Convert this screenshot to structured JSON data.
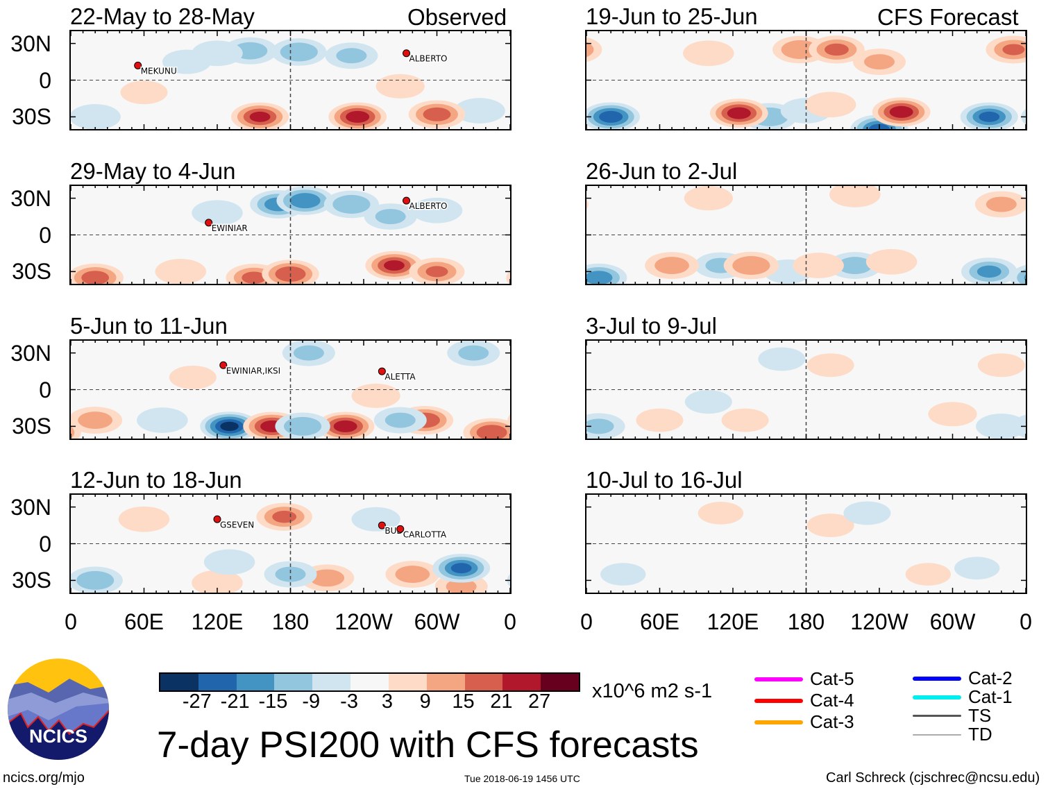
{
  "header": {
    "left_label": "Observed",
    "right_label": "CFS Forecast"
  },
  "lat_labels": [
    "30N",
    "0",
    "30S"
  ],
  "lon_labels": [
    "0",
    "60E",
    "120E",
    "180",
    "120W",
    "60W",
    "0"
  ],
  "colors": [
    "#0a3263",
    "#2166ac",
    "#4393c3",
    "#92c5de",
    "#d1e5f0",
    "#f7f7f7",
    "#fddbc7",
    "#f4a582",
    "#d6604d",
    "#b2182b",
    "#67001f"
  ],
  "chart_data": {
    "type": "heatmap",
    "title": "7-day PSI200 with CFS forecasts",
    "units": "x10^6 m2 s-1",
    "levels": [
      "-27",
      "-21",
      "-15",
      "-9",
      "-3",
      "3",
      "9",
      "15",
      "21",
      "27"
    ],
    "panels": [
      {
        "title": "22-May to 28-May",
        "kind": "observed",
        "anomalies": [
          [
            147,
            24,
            -12
          ],
          [
            187,
            23,
            -14
          ],
          [
            120,
            22,
            -8
          ],
          [
            230,
            20,
            -10
          ],
          [
            95,
            15,
            -6
          ],
          [
            20,
            -30,
            -8
          ],
          [
            335,
            -25,
            -8
          ],
          [
            155,
            -30,
            22
          ],
          [
            235,
            -30,
            24
          ],
          [
            300,
            -28,
            18
          ],
          [
            60,
            -10,
            5
          ],
          [
            270,
            -5,
            6
          ]
        ],
        "storms": [
          {
            "name": "MEKUNU",
            "lon": 55,
            "lat": 12
          },
          {
            "name": "ALBERTO",
            "lon": 275,
            "lat": 22
          }
        ]
      },
      {
        "title": "29-May to 4-Jun",
        "kind": "observed",
        "anomalies": [
          [
            170,
            25,
            -18
          ],
          [
            192,
            28,
            -20
          ],
          [
            230,
            25,
            -14
          ],
          [
            262,
            15,
            -10
          ],
          [
            120,
            18,
            -8
          ],
          [
            300,
            20,
            -8
          ],
          [
            20,
            -35,
            18
          ],
          [
            150,
            -35,
            16
          ],
          [
            180,
            -32,
            20
          ],
          [
            265,
            -25,
            22
          ],
          [
            300,
            -30,
            15
          ],
          [
            90,
            -30,
            8
          ]
        ],
        "storms": [
          {
            "name": "EWINIAR",
            "lon": 113,
            "lat": 10
          },
          {
            "name": "ALBERTO",
            "lon": 275,
            "lat": 28
          }
        ]
      },
      {
        "title": "5-Jun to 11-Jun",
        "kind": "observed",
        "anomalies": [
          [
            130,
            -30,
            -28
          ],
          [
            165,
            -30,
            24
          ],
          [
            225,
            -30,
            24
          ],
          [
            290,
            -25,
            20
          ],
          [
            345,
            -35,
            20
          ],
          [
            20,
            -25,
            12
          ],
          [
            190,
            -30,
            -14
          ],
          [
            270,
            -25,
            -10
          ],
          [
            75,
            -25,
            -8
          ],
          [
            195,
            30,
            -10
          ],
          [
            330,
            30,
            -10
          ],
          [
            250,
            -5,
            6
          ],
          [
            100,
            10,
            5
          ]
        ],
        "storms": [
          {
            "name": "EWINIAR,IKSI",
            "lon": 125,
            "lat": 20
          },
          {
            "name": "ALETTA",
            "lon": 255,
            "lat": 15
          }
        ]
      },
      {
        "title": "12-Jun to 18-Jun",
        "kind": "observed",
        "anomalies": [
          [
            175,
            22,
            16
          ],
          [
            120,
            -32,
            8
          ],
          [
            210,
            -28,
            12
          ],
          [
            280,
            -25,
            12
          ],
          [
            320,
            -35,
            10
          ],
          [
            20,
            -30,
            -14
          ],
          [
            320,
            -20,
            -22
          ],
          [
            180,
            -25,
            -10
          ],
          [
            130,
            -15,
            -8
          ],
          [
            250,
            20,
            -6
          ],
          [
            60,
            20,
            8
          ]
        ],
        "storms": [
          {
            "name": "GSEVEN",
            "lon": 120,
            "lat": 20
          },
          {
            "name": "BUD",
            "lon": 255,
            "lat": 15
          },
          {
            "name": "CARLOTTA",
            "lon": 270,
            "lat": 12
          }
        ]
      },
      {
        "title": "19-Jun to 25-Jun",
        "kind": "forecast",
        "anomalies": [
          [
            20,
            -30,
            -24
          ],
          [
            150,
            -30,
            -14
          ],
          [
            180,
            -25,
            -8
          ],
          [
            240,
            -40,
            -22
          ],
          [
            330,
            -30,
            -22
          ],
          [
            125,
            -27,
            24
          ],
          [
            258,
            -26,
            24
          ],
          [
            200,
            -20,
            8
          ],
          [
            175,
            25,
            14
          ],
          [
            205,
            25,
            16
          ],
          [
            350,
            25,
            15
          ],
          [
            240,
            15,
            10
          ],
          [
            100,
            22,
            8
          ]
        ],
        "storms": []
      },
      {
        "title": "26-Jun to 2-Jul",
        "kind": "forecast",
        "anomalies": [
          [
            10,
            -35,
            -18
          ],
          [
            110,
            -25,
            -10
          ],
          [
            330,
            -30,
            -16
          ],
          [
            220,
            -25,
            -12
          ],
          [
            165,
            -30,
            -6
          ],
          [
            70,
            -25,
            12
          ],
          [
            135,
            -25,
            14
          ],
          [
            190,
            -25,
            8
          ],
          [
            250,
            -22,
            8
          ],
          [
            220,
            33,
            8
          ],
          [
            340,
            25,
            10
          ],
          [
            100,
            30,
            6
          ]
        ],
        "storms": []
      },
      {
        "title": "3-Jul to 9-Jul",
        "kind": "forecast",
        "anomalies": [
          [
            10,
            -30,
            -10
          ],
          [
            340,
            -30,
            -8
          ],
          [
            100,
            -10,
            -5
          ],
          [
            160,
            25,
            -5
          ],
          [
            60,
            -25,
            5
          ],
          [
            130,
            -25,
            5
          ],
          [
            300,
            -20,
            6
          ],
          [
            340,
            20,
            5
          ],
          [
            200,
            20,
            5
          ]
        ],
        "storms": []
      },
      {
        "title": "10-Jul to 16-Jul",
        "kind": "forecast",
        "anomalies": [
          [
            200,
            15,
            5
          ],
          [
            110,
            25,
            4
          ],
          [
            280,
            -25,
            4
          ],
          [
            30,
            -25,
            -4
          ],
          [
            230,
            25,
            -5
          ],
          [
            320,
            -20,
            -4
          ]
        ],
        "storms": []
      }
    ]
  },
  "legend": {
    "units": "x10^6 m2 s-1",
    "storm_categories": [
      {
        "label": "Cat-5",
        "color": "#ff00ff"
      },
      {
        "label": "Cat-4",
        "color": "#ff0000"
      },
      {
        "label": "Cat-3",
        "color": "#ffa500"
      },
      {
        "label": "Cat-2",
        "color": "#0000ff"
      },
      {
        "label": "Cat-1",
        "color": "#00eeee"
      },
      {
        "label": "TS",
        "color": "#555555"
      },
      {
        "label": "TD",
        "color": "#aaaaaa"
      }
    ]
  },
  "footer": {
    "title": "7-day PSI200 with CFS forecasts",
    "logo_text": "NCICS",
    "url": "ncics.org/mjo",
    "timestamp": "Tue 2018-06-19 1456 UTC",
    "credit": "Carl Schreck (cjschrec@ncsu.edu)"
  }
}
